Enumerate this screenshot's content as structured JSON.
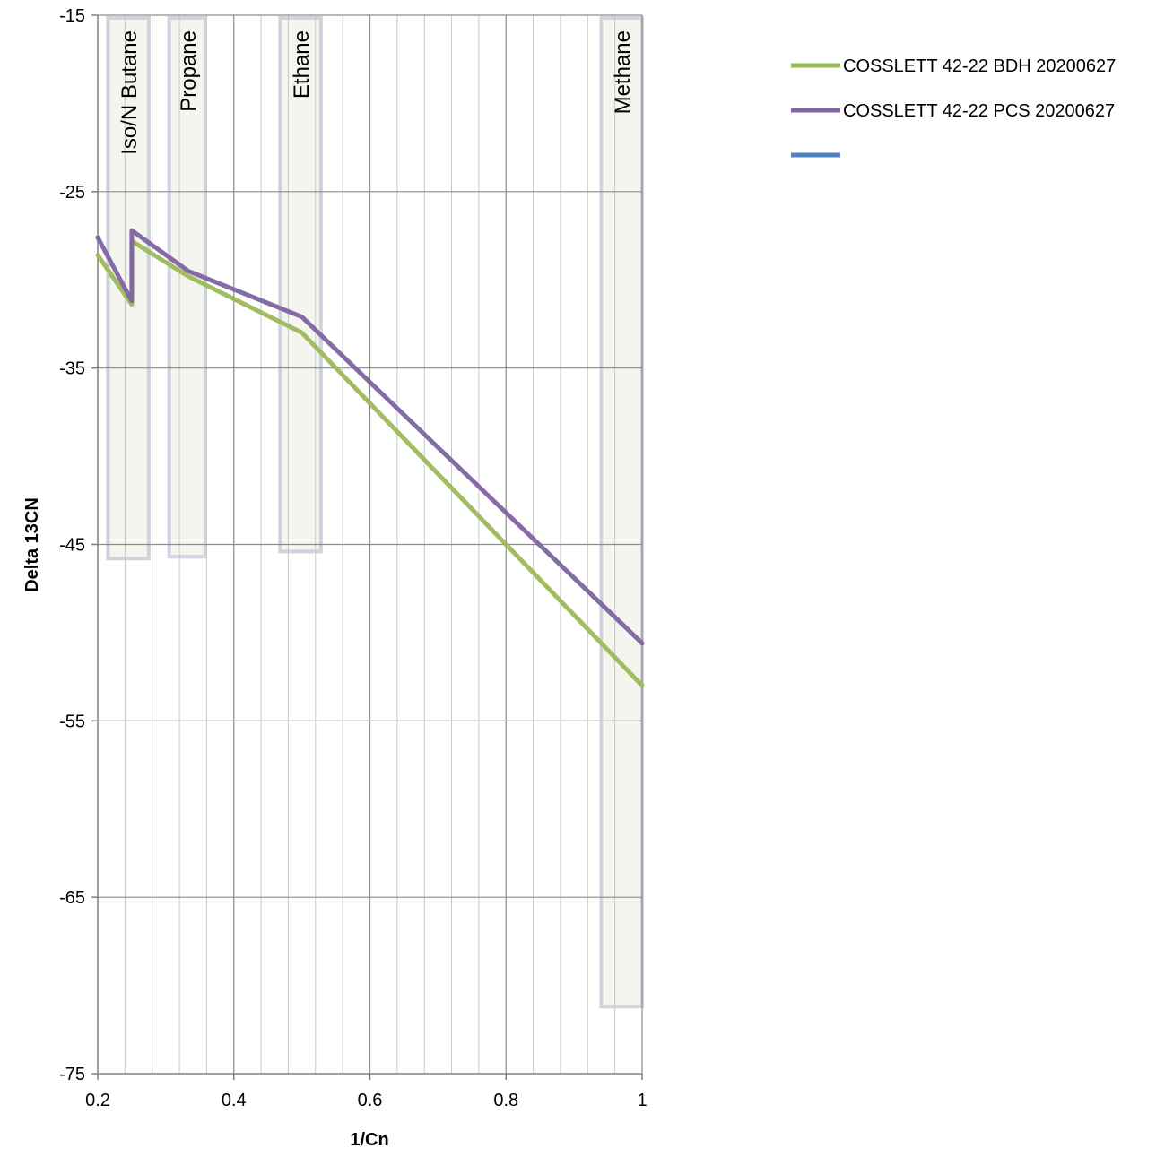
{
  "chart_data": {
    "type": "line",
    "title": "",
    "xlabel": "1/Cn",
    "ylabel": "Delta 13CN",
    "xlim": [
      0.2,
      1
    ],
    "ylim": [
      -75,
      -15
    ],
    "x_ticks": [
      "0.2",
      "0.4",
      "0.6",
      "0.8",
      "1"
    ],
    "y_ticks": [
      "-15",
      "-25",
      "-35",
      "-45",
      "-55",
      "-65",
      "-75"
    ],
    "x_major_step": 0.2,
    "x_minor_step": 0.04,
    "y_major_step": 10,
    "grid": true,
    "legend_position": "right",
    "bands": [
      {
        "label": "Iso/N Butane",
        "x_start": 0.215,
        "x_end": 0.275,
        "y_bottom": -45.8
      },
      {
        "label": "Propane",
        "x_start": 0.305,
        "x_end": 0.358,
        "y_bottom": -45.7
      },
      {
        "label": "Ethane",
        "x_start": 0.468,
        "x_end": 0.528,
        "y_bottom": -45.4
      },
      {
        "label": "Methane",
        "x_start": 0.94,
        "x_end": 1.0,
        "y_bottom": -71.2
      }
    ],
    "series": [
      {
        "name": "COSSLETT 42-22 BDH 20200627",
        "color": "#9bbb59",
        "x": [
          0.2,
          0.25,
          0.25,
          0.333,
          0.5,
          1.0
        ],
        "y": [
          -28.6,
          -31.4,
          -27.8,
          -29.8,
          -33.0,
          -53.0
        ]
      },
      {
        "name": "COSSLETT 42-22 PCS 20200627",
        "color": "#8064a2",
        "x": [
          0.2,
          0.25,
          0.25,
          0.333,
          0.5,
          1.0
        ],
        "y": [
          -27.6,
          -31.2,
          -27.2,
          -29.5,
          -32.1,
          -50.6
        ]
      },
      {
        "name": "",
        "color": "#4f81bd",
        "x": [],
        "y": []
      }
    ]
  }
}
